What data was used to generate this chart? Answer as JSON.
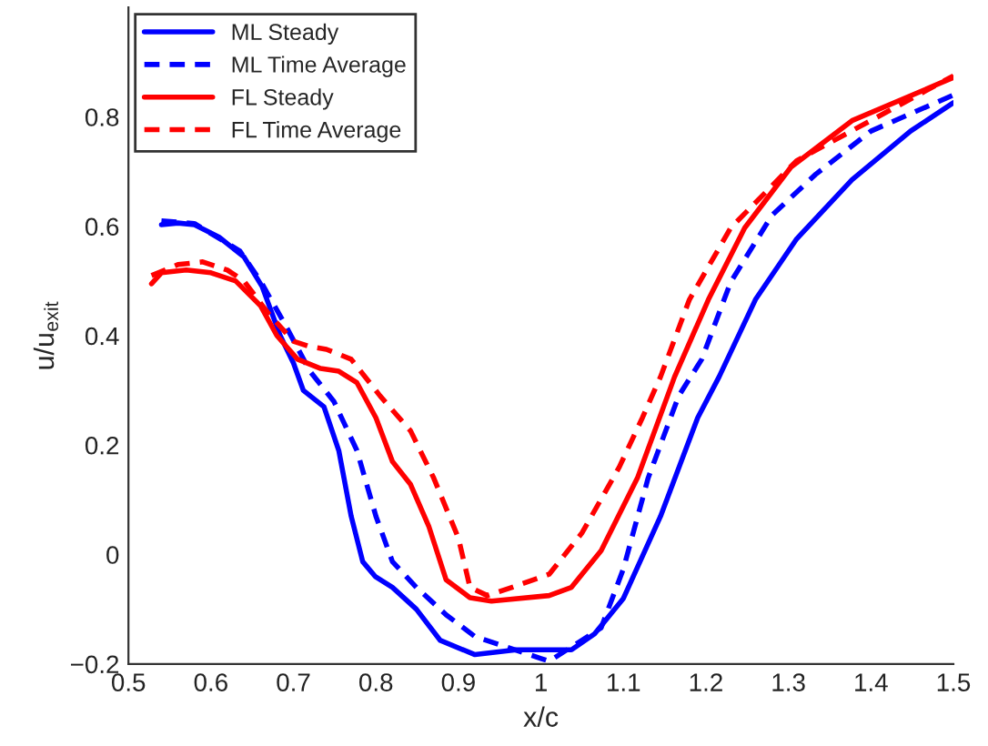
{
  "chart_data": {
    "type": "line",
    "xlabel": "x/c",
    "ylabel": "u/u$_{exit}$",
    "xlim": [
      0.5,
      1.5
    ],
    "ylim": [
      -0.2,
      1.0
    ],
    "xticks": [
      0.5,
      0.6,
      0.7,
      0.8,
      0.9,
      1,
      1.1,
      1.2,
      1.3,
      1.4,
      1.5
    ],
    "yticks": [
      {
        "value": -0.2,
        "label": "−0.2"
      },
      0,
      0.2,
      0.4,
      0.6,
      0.8
    ],
    "grid": false,
    "legend": "top left",
    "series": [
      {
        "name": "ML Steady",
        "color": "#0000ff",
        "line_style": "solid",
        "x": [
          0.54,
          0.56,
          0.58,
          0.61,
          0.64,
          0.662,
          0.684,
          0.7,
          0.712,
          0.737,
          0.755,
          0.77,
          0.784,
          0.799,
          0.82,
          0.849,
          0.878,
          0.92,
          0.97,
          1.037,
          1.065,
          1.1,
          1.145,
          1.19,
          1.216,
          1.26,
          1.31,
          1.377,
          1.448,
          1.5
        ],
        "values": [
          0.603,
          0.606,
          0.603,
          0.58,
          0.544,
          0.49,
          0.4,
          0.35,
          0.3,
          0.27,
          0.19,
          0.07,
          -0.013,
          -0.04,
          -0.06,
          -0.1,
          -0.157,
          -0.183,
          -0.174,
          -0.174,
          -0.145,
          -0.08,
          0.07,
          0.25,
          0.325,
          0.466,
          0.577,
          0.685,
          0.774,
          0.826
        ]
      },
      {
        "name": "ML Time Average",
        "color": "#0000ff",
        "line_style": "dashed",
        "x": [
          0.54,
          0.58,
          0.635,
          0.66,
          0.69,
          0.72,
          0.749,
          0.777,
          0.8,
          0.82,
          0.849,
          0.885,
          0.92,
          0.95,
          1.0,
          1.01,
          1.073,
          1.1,
          1.13,
          1.167,
          1.195,
          1.23,
          1.28,
          1.333,
          1.4,
          1.5
        ],
        "values": [
          0.61,
          0.605,
          0.555,
          0.5,
          0.42,
          0.335,
          0.28,
          0.19,
          0.07,
          -0.013,
          -0.06,
          -0.11,
          -0.15,
          -0.165,
          -0.19,
          -0.195,
          -0.134,
          -0.026,
          0.14,
          0.29,
          0.357,
          0.498,
          0.62,
          0.695,
          0.774,
          0.84
        ]
      },
      {
        "name": "FL Steady",
        "color": "#ff0000",
        "line_style": "solid",
        "x": [
          0.528,
          0.54,
          0.57,
          0.6,
          0.63,
          0.66,
          0.68,
          0.705,
          0.733,
          0.755,
          0.777,
          0.8,
          0.82,
          0.842,
          0.864,
          0.885,
          0.914,
          0.94,
          1.01,
          1.037,
          1.073,
          1.117,
          1.162,
          1.203,
          1.247,
          1.303,
          1.377,
          1.5
        ],
        "values": [
          0.495,
          0.515,
          0.52,
          0.515,
          0.5,
          0.455,
          0.4,
          0.357,
          0.34,
          0.335,
          0.314,
          0.25,
          0.17,
          0.128,
          0.052,
          -0.046,
          -0.079,
          -0.085,
          -0.075,
          -0.06,
          0.007,
          0.14,
          0.325,
          0.466,
          0.597,
          0.708,
          0.793,
          0.872
        ]
      },
      {
        "name": "FL Time Average",
        "color": "#ff0000",
        "line_style": "dashed",
        "x": [
          0.528,
          0.56,
          0.59,
          0.62,
          0.64,
          0.67,
          0.7,
          0.72,
          0.74,
          0.77,
          0.805,
          0.842,
          0.87,
          0.9,
          0.914,
          0.935,
          0.965,
          1.01,
          1.05,
          1.095,
          1.123,
          1.145,
          1.18,
          1.23,
          1.31,
          1.5
        ],
        "values": [
          0.51,
          0.53,
          0.535,
          0.52,
          0.5,
          0.44,
          0.39,
          0.38,
          0.375,
          0.357,
          0.29,
          0.226,
          0.14,
          0.03,
          -0.06,
          -0.075,
          -0.06,
          -0.036,
          0.04,
          0.16,
          0.25,
          0.325,
          0.466,
          0.597,
          0.72,
          0.875
        ]
      }
    ]
  }
}
